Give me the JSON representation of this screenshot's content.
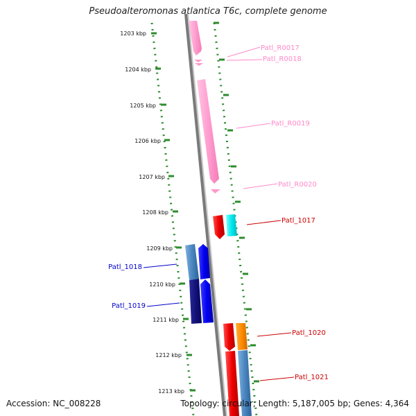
{
  "title": "Pseudoalteromonas atlantica T6c, complete genome",
  "footer": {
    "accession": "Accession: NC_008228",
    "summary": "Topology: circular; Length: 5,187,005 bp; Genes: 4,364"
  },
  "ruler": {
    "labels": [
      "1203 kbp",
      "1204 kbp",
      "1205 kbp",
      "1206 kbp",
      "1207 kbp",
      "1208 kbp",
      "1209 kbp",
      "1210 kbp",
      "1211 kbp",
      "1212 kbp",
      "1213 kbp"
    ]
  },
  "genes": [
    {
      "id": "Patl_R0017",
      "label": "Patl_R0017",
      "color": "#ff99cc"
    },
    {
      "id": "Patl_R0018",
      "label": "Patl_R0018",
      "color": "#ff99cc"
    },
    {
      "id": "Patl_R0019",
      "label": "Patl_R0019",
      "color": "#ff99cc"
    },
    {
      "id": "Patl_R0020",
      "label": "Patl_R0020",
      "color": "#ff99cc"
    },
    {
      "id": "Patl_1017",
      "label": "Patl_1017",
      "color": "#cc0000"
    },
    {
      "id": "Patl_1018",
      "label": "Patl_1018",
      "color": "#0000cc"
    },
    {
      "id": "Patl_1019",
      "label": "Patl_1019",
      "color": "#0000cc"
    },
    {
      "id": "Patl_1020",
      "label": "Patl_1020",
      "color": "#cc0000"
    },
    {
      "id": "Patl_1021",
      "label": "Patl_1021",
      "color": "#cc0000"
    }
  ]
}
